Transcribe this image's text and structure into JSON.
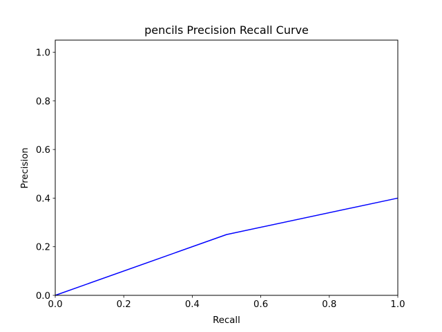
{
  "chart_data": {
    "type": "line",
    "title": "pencils Precision Recall Curve",
    "xlabel": "Recall",
    "ylabel": "Precision",
    "xlim": [
      0.0,
      1.0
    ],
    "ylim": [
      0.0,
      1.05
    ],
    "xticks": [
      0.0,
      0.2,
      0.4,
      0.6,
      0.8,
      1.0
    ],
    "xtick_labels": [
      "0.0",
      "0.2",
      "0.4",
      "0.6",
      "0.8",
      "1.0"
    ],
    "yticks": [
      0.0,
      0.2,
      0.4,
      0.6,
      0.8,
      1.0
    ],
    "ytick_labels": [
      "0.0",
      "0.2",
      "0.4",
      "0.6",
      "0.8",
      "1.0"
    ],
    "grid": false,
    "series": [
      {
        "color": "#0000ff",
        "x": [
          0.0,
          0.5,
          1.0
        ],
        "y": [
          0.0,
          0.25,
          0.4
        ]
      }
    ]
  }
}
